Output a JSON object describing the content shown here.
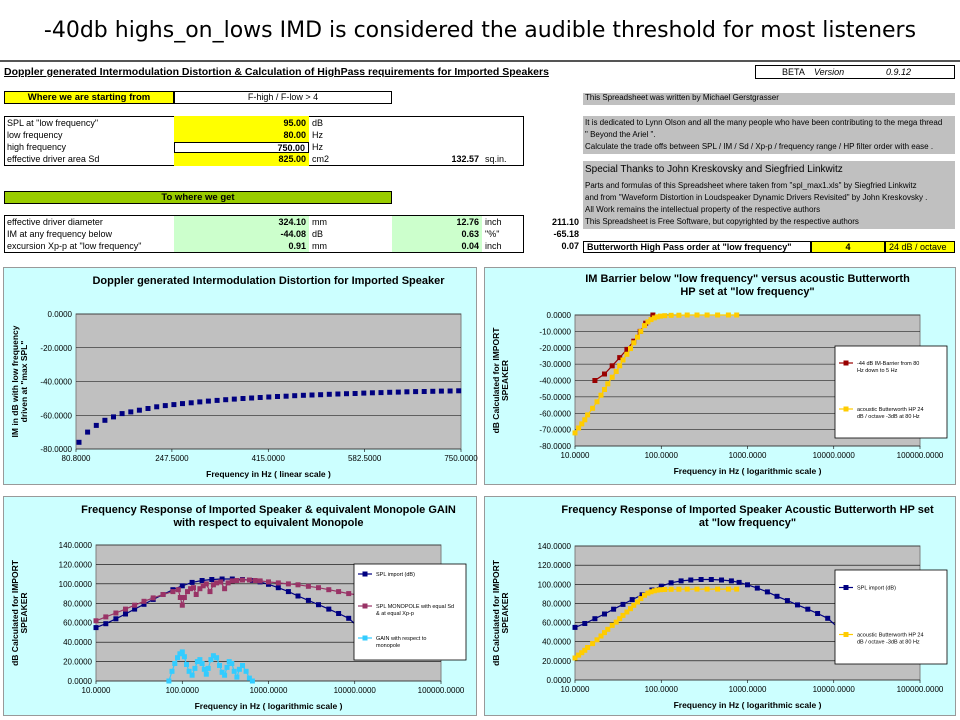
{
  "slide_title": "-40db highs_on_lows IMD is considered the audible threshold for most listeners",
  "sheet": {
    "header": "Doppler generated Intermodulation Distortion & Calculation of HighPass requirements for Imported Speakers",
    "beta_label": "BETA",
    "version_label": "Version",
    "version": "0.9.12",
    "start_header": "Where we are starting from",
    "condition": "F-high / F-low > 4",
    "inputs": [
      {
        "label": "SPL at \"low frequency\"",
        "value": "95.00",
        "unit": "dB"
      },
      {
        "label": "low frequency",
        "value": "80.00",
        "unit": "Hz"
      },
      {
        "label": "high frequency",
        "value": "750.00",
        "unit": "Hz"
      },
      {
        "label": "effective driver area Sd",
        "value": "825.00",
        "unit": "cm2"
      }
    ],
    "area_sqin": "132.57",
    "area_sqin_unit": "sq.in.",
    "result_header": "To where we get",
    "results": [
      {
        "label": "effective driver diameter",
        "value": "324.10",
        "unit": "mm",
        "value2": "12.76",
        "unit2": "inch"
      },
      {
        "label": "IM at any frequency below",
        "value": "-44.08",
        "unit": "dB",
        "value2": "0.63",
        "unit2": "\"%\""
      },
      {
        "label": "excursion Xp-p at \"low frequency\"",
        "value": "0.91",
        "unit": "mm",
        "value2": "0.04",
        "unit2": "inch"
      }
    ],
    "extra_values": [
      "211.10",
      "-65.18",
      "0.07"
    ],
    "butterworth_label": "Butterworth High Pass order at \"low frequency\"",
    "butterworth_order": "4",
    "butterworth_slope": "24  dB / octave",
    "notes": [
      "This Spreadsheet was written by Michael Gerstgrasser",
      "It is dedicated to Lynn Olson and all the many people who have been contributing to the mega thread",
      " \" Beyond the Ariel \".",
      "Calculate the trade offs between SPL / IM / Sd / Xp-p / frequency range / HP filter order with ease .",
      "Special Thanks to  John Kreskovsky  and Siegfried Linkwitz",
      "Parts and formulas of this Spreadsheet where taken from \"spl_max1.xls\" by Siegfried Linkwitz",
      "and from \"Waveform Distortion in Loudspeaker Dynamic Drivers Revisited\" by John Kreskovsky .",
      "All Work remains the intellectual property of the respective authors",
      "This Spreadsheet is Free Software, but copyrighted by the respective authors"
    ]
  },
  "chart_data": [
    {
      "type": "scatter",
      "title": "Doppler generated Intermodulation Distortion for Imported Speaker",
      "xlabel": "Frequency in Hz ( linear scale )",
      "ylabel": "IM in dB with low frequency driven at \"max SPL\"",
      "xlim": [
        80.8,
        750
      ],
      "ylim": [
        -80,
        0
      ],
      "xticks": [
        "80.8000",
        "247.5000",
        "415.0000",
        "582.5000",
        "750.0000"
      ],
      "yticks": [
        "0.0000",
        "-20.0000",
        "-40.0000",
        "-60.0000",
        "-80.0000"
      ],
      "series": [
        {
          "color": "#000080",
          "x": [
            86,
            101,
            116,
            131,
            146,
            161,
            176,
            191,
            206,
            221,
            236,
            251,
            266,
            281,
            296,
            311,
            326,
            341,
            356,
            371,
            386,
            401,
            416,
            431,
            446,
            461,
            476,
            491,
            506,
            521,
            536,
            551,
            566,
            581,
            596,
            611,
            626,
            641,
            656,
            671,
            686,
            701,
            716,
            731,
            746
          ],
          "y": [
            -76,
            -70,
            -66,
            -63,
            -61,
            -59,
            -58,
            -57,
            -56,
            -55,
            -54.3,
            -53.7,
            -53.1,
            -52.6,
            -52.1,
            -51.6,
            -51.2,
            -50.8,
            -50.4,
            -50.1,
            -49.8,
            -49.5,
            -49.2,
            -48.9,
            -48.7,
            -48.4,
            -48.2,
            -48,
            -47.8,
            -47.6,
            -47.4,
            -47.2,
            -47.1,
            -46.9,
            -46.7,
            -46.6,
            -46.4,
            -46.3,
            -46.1,
            -46,
            -45.9,
            -45.8,
            -45.7,
            -45.6,
            -45.5
          ]
        }
      ]
    },
    {
      "type": "line",
      "title": "IM Barrier below \"low frequency\" versus  acoustic Butterworth HP set at \"low frequency\"",
      "xlabel": "Frequency in Hz ( logarithmic scale )",
      "ylabel": "dB Calculated for IMPORT SPEAKER",
      "xscale": "log",
      "xlim": [
        10,
        100000
      ],
      "ylim": [
        -80,
        0
      ],
      "xticks": [
        "10.0000",
        "100.0000",
        "1000.0000",
        "10000.0000",
        "100000.0000"
      ],
      "yticks": [
        "0.0000",
        "-10.0000",
        "-20.0000",
        "-30.0000",
        "-40.0000",
        "-50.0000",
        "-60.0000",
        "-70.0000",
        "-80.0000"
      ],
      "legend": "right",
      "series": [
        {
          "name": "-44 dB  IM-Barrier from 80 Hz down to 5 Hz",
          "color": "#990000",
          "x": [
            17,
            22,
            27,
            33,
            40,
            48,
            57,
            66,
            80
          ],
          "y": [
            -40,
            -36,
            -31,
            -26,
            -21,
            -16,
            -10,
            -5,
            0
          ]
        },
        {
          "name": "acoustic Butterworth HP 24  dB / octave    -3dB at 80 Hz",
          "color": "#ffcc00",
          "x": [
            10,
            11,
            12,
            13,
            14,
            16,
            18,
            20,
            22,
            24,
            27,
            30,
            33,
            36,
            40,
            44,
            48,
            53,
            58,
            64,
            70,
            76,
            83,
            90,
            98,
            110,
            130,
            160,
            200,
            260,
            340,
            450,
            600,
            750
          ],
          "y": [
            -72,
            -69,
            -66.5,
            -64,
            -61,
            -57,
            -53,
            -49,
            -45.5,
            -42,
            -38,
            -34.5,
            -31,
            -27.5,
            -24,
            -20.5,
            -17,
            -13.5,
            -10,
            -6.5,
            -4.2,
            -2.8,
            -1.8,
            -1.1,
            -0.7,
            -0.4,
            -0.2,
            -0.1,
            0,
            0,
            0,
            0,
            0,
            0
          ]
        }
      ]
    },
    {
      "type": "line",
      "title": "Frequency Response of Imported  Speaker & equivalent Monopole GAIN with respect to equivalent  Monopole",
      "xlabel": "Frequency in Hz ( logarithmic scale )",
      "ylabel": "dB Calculated for IMPORT SPEAKER",
      "xscale": "log",
      "xlim": [
        10,
        100000
      ],
      "ylim": [
        0,
        140
      ],
      "xticks": [
        "10.0000",
        "100.0000",
        "1000.0000",
        "10000.0000",
        "100000.0000"
      ],
      "yticks": [
        "140.0000",
        "120.0000",
        "100.0000",
        "80.0000",
        "60.0000",
        "40.0000",
        "20.0000",
        "0.0000"
      ],
      "legend": "right",
      "series": [
        {
          "name": "SPL import (dB)",
          "color": "#000080",
          "x": [
            10,
            13,
            17,
            22,
            28,
            36,
            46,
            60,
            78,
            100,
            130,
            170,
            220,
            290,
            380,
            500,
            650,
            800,
            1000,
            1300,
            1700,
            2200,
            2900,
            3800,
            5000,
            6500,
            8500,
            11000,
            14000
          ],
          "y": [
            55,
            59,
            64,
            69,
            74,
            79,
            84,
            89,
            94,
            98,
            101.5,
            103.5,
            104.5,
            105,
            105,
            104.5,
            103.5,
            102,
            99.5,
            96,
            92,
            87.5,
            83,
            78.5,
            74,
            69.5,
            64.5,
            55.5,
            54
          ]
        },
        {
          "name": "SPL MONOPOLE with equal Sd & at equal Xp-p",
          "color": "#993366",
          "x": [
            10,
            13,
            17,
            22,
            28,
            36,
            46,
            60,
            78,
            90,
            95,
            100,
            106,
            115,
            125,
            135,
            145,
            160,
            175,
            190,
            210,
            230,
            250,
            280,
            310,
            340,
            380,
            430,
            500,
            600,
            700,
            800,
            1000,
            1300,
            1700,
            2200,
            2900,
            3800,
            5000,
            6500,
            8500,
            11000
          ],
          "y": [
            62,
            66,
            70,
            74,
            78,
            82,
            85.5,
            89,
            92,
            94,
            86,
            78,
            86,
            92,
            95,
            96,
            89,
            95,
            98,
            100,
            92,
            99,
            101,
            102,
            95,
            101,
            103,
            103.5,
            104,
            104,
            103.5,
            103,
            102,
            101,
            100,
            99,
            97.5,
            96,
            94,
            92,
            90,
            88.5
          ]
        },
        {
          "name": "GAIN with respect to monopole",
          "color": "#33ccff",
          "x": [
            70,
            76,
            82,
            88,
            94,
            100,
            106,
            112,
            120,
            130,
            140,
            150,
            160,
            170,
            180,
            190,
            200,
            215,
            230,
            250,
            270,
            290,
            310,
            330,
            350,
            375,
            400,
            430,
            460,
            500,
            550,
            600,
            650
          ],
          "y": [
            0,
            10,
            18,
            24,
            28,
            30,
            25,
            17,
            10,
            6,
            13,
            20,
            22,
            18,
            12,
            7,
            13,
            22,
            26,
            24,
            16,
            9,
            6,
            14,
            20,
            18,
            10,
            4,
            12,
            16,
            10,
            3,
            0
          ]
        }
      ]
    },
    {
      "type": "line",
      "title": "Frequency Response of Imported  Speaker Acoustic Butterworth HP set at \"low frequency\"",
      "xlabel": "Frequency in Hz ( logarithmic scale )",
      "ylabel": "dB Calculated for IMPORT SPEAKER",
      "xscale": "log",
      "xlim": [
        10,
        100000
      ],
      "ylim": [
        0,
        140
      ],
      "xticks": [
        "10.0000",
        "100.0000",
        "1000.0000",
        "10000.0000",
        "100000.0000"
      ],
      "yticks": [
        "140.0000",
        "120.0000",
        "100.0000",
        "80.0000",
        "60.0000",
        "40.0000",
        "20.0000",
        "0.0000"
      ],
      "legend": "right",
      "series": [
        {
          "name": "SPL import (dB)",
          "color": "#000080",
          "x": [
            10,
            13,
            17,
            22,
            28,
            36,
            46,
            60,
            78,
            100,
            130,
            170,
            220,
            290,
            380,
            500,
            650,
            800,
            1000,
            1300,
            1700,
            2200,
            2900,
            3800,
            5000,
            6500,
            8500,
            11000,
            14000
          ],
          "y": [
            55,
            59,
            64,
            69,
            74,
            79,
            84,
            89,
            94,
            98,
            101.5,
            103.5,
            104.5,
            105,
            105,
            104.5,
            103.5,
            102,
            99.5,
            96,
            92,
            87.5,
            83,
            78.5,
            74,
            69.5,
            64.5,
            55.5,
            54
          ]
        },
        {
          "name": "acoustic Butterworth HP 24  dB / octave    -3dB at 80 Hz",
          "color": "#ffcc00",
          "x": [
            10,
            11,
            12,
            13,
            14,
            16,
            18,
            20,
            22,
            24,
            27,
            30,
            33,
            36,
            40,
            44,
            48,
            53,
            58,
            64,
            70,
            76,
            83,
            90,
            98,
            110,
            130,
            160,
            200,
            260,
            340,
            450,
            600,
            750
          ],
          "y": [
            23,
            26,
            28.5,
            31,
            34,
            38,
            42,
            46,
            49.5,
            53,
            57,
            60.5,
            64,
            67.5,
            71,
            74.5,
            78,
            81.5,
            85,
            88.5,
            90.8,
            92.2,
            93.2,
            93.9,
            94.3,
            94.6,
            94.8,
            94.9,
            95,
            95,
            95,
            95,
            95,
            95
          ]
        }
      ]
    }
  ]
}
